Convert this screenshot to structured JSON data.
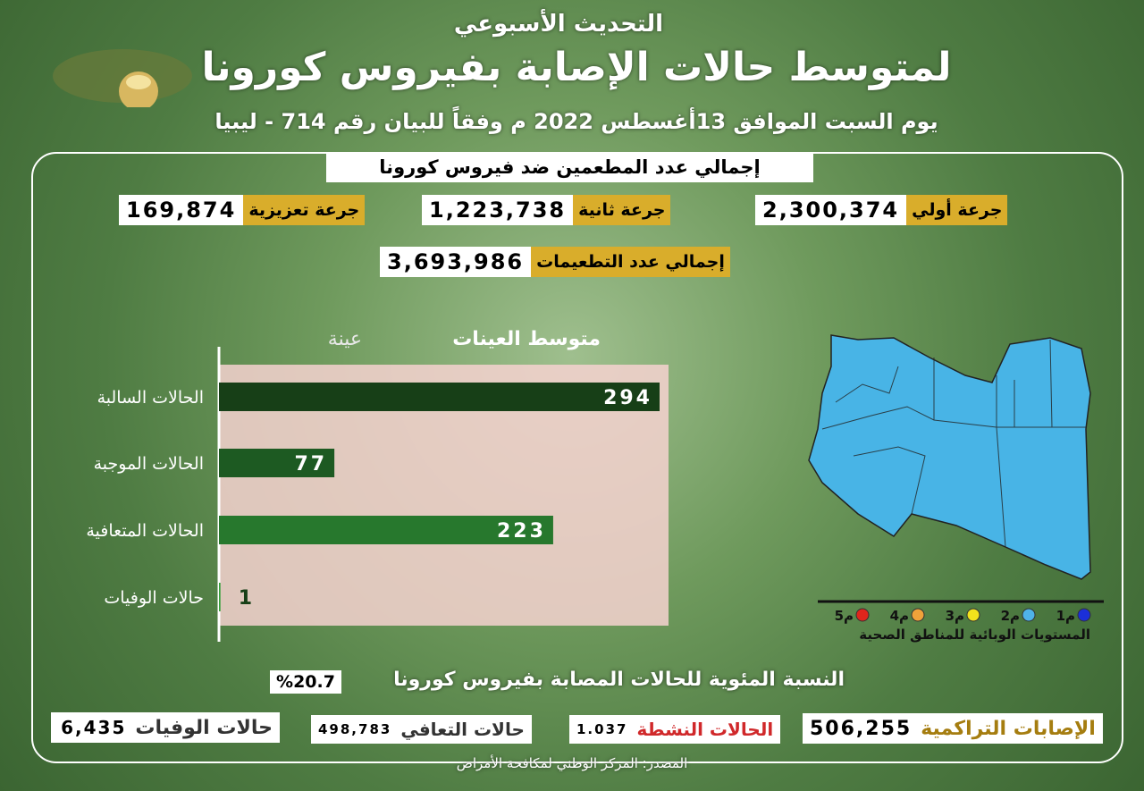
{
  "header": {
    "subtitle": "التحديث الأسبوعي",
    "title": "لمتوسط حالات الإصابة بفيروس كورونا",
    "date_line": "يوم السبت الموافق 13أغسطس 2022 م وفقاً للبيان رقم  714  - ليبيا"
  },
  "vaccination": {
    "heading": "إجمالي عدد المطعمين ضد فيروس كورونا",
    "doses": [
      {
        "label": "جرعة أولي",
        "value": "2,300,374"
      },
      {
        "label": "جرعة ثانية",
        "value": "1,223,738"
      },
      {
        "label": "جرعة تعزيزية",
        "value": "169,874"
      }
    ],
    "total": {
      "label": "إجمالي عدد التطعيمات",
      "value": "3,693,986"
    }
  },
  "chart_data": {
    "type": "bar",
    "title": "متوسط العينات",
    "unit_label": "عينة",
    "categories": [
      "الحالات السالبة",
      "الحالات الموجبة",
      "الحالات المتعافية",
      "حالات الوفيات"
    ],
    "values": [
      294,
      77,
      223,
      1
    ],
    "colors": [
      "#173f17",
      "#1d5a22",
      "#27782d",
      "#36a03c"
    ]
  },
  "map": {
    "legend_title": "المستويات الوبائية للمناطق الصحية",
    "levels": [
      {
        "label": "م1",
        "color": "#1b2fd8"
      },
      {
        "label": "م2",
        "color": "#4fb3e8"
      },
      {
        "label": "م3",
        "color": "#f2e21c"
      },
      {
        "label": "م4",
        "color": "#f0a23a"
      },
      {
        "label": "م5",
        "color": "#e0261c"
      }
    ]
  },
  "summary": {
    "positivity": {
      "label": "النسبة المئوية للحالات المصابة بفيروس كورونا",
      "value": "%20.7"
    },
    "stats": [
      {
        "label": "الإصابات التراكمية",
        "value": "506,255"
      },
      {
        "label": "الحالات النشطة",
        "value": "1.037"
      },
      {
        "label": "حالات التعافي",
        "value": "498,783"
      },
      {
        "label": "حالات الوفيات",
        "value": "6,435"
      }
    ]
  },
  "footer": {
    "source": "المصدر: المركز الوطني لمكافحة الأمراض"
  }
}
